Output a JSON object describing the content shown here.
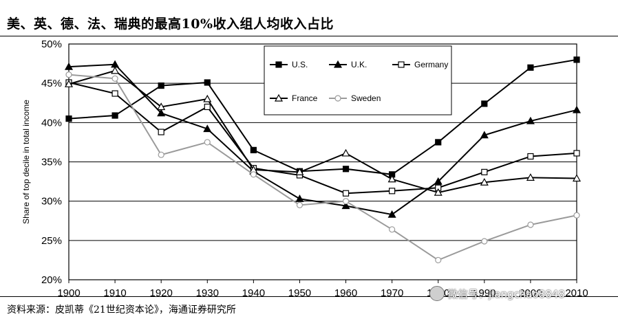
{
  "page": {
    "title": "美、英、德、法、瑞典的最高10%收入组人均收入占比",
    "source": "资料来源：皮凯蒂《21世纪资本论》，海通证券研究所",
    "watermark": "微信号：jiangchao8848"
  },
  "chart_data": {
    "type": "line",
    "ylabel": "Share of top decile in total income",
    "x": [
      1900,
      1910,
      1920,
      1930,
      1940,
      1950,
      1960,
      1970,
      1980,
      1990,
      2000,
      2010
    ],
    "x_tick_labels": [
      "1900",
      "1910",
      "1920",
      "1930",
      "1940",
      "1950",
      "1960",
      "1970",
      "1980",
      "1990",
      "2000",
      "2010"
    ],
    "y_tick_labels": [
      "20%",
      "25%",
      "30%",
      "35%",
      "40%",
      "45%",
      "50%"
    ],
    "ylim": [
      20,
      50
    ],
    "xlim": [
      1900,
      2010
    ],
    "grid": "horizontal",
    "legend_position": "top-right",
    "series": [
      {
        "name": "U.S.",
        "marker": "filled-square",
        "color": "#000000",
        "x": [
          1900,
          1910,
          1920,
          1930,
          1940,
          1950,
          1960,
          1970,
          1980,
          1990,
          2000,
          2010
        ],
        "values": [
          40.5,
          40.9,
          44.7,
          45.1,
          36.5,
          33.8,
          34.1,
          33.4,
          37.5,
          42.4,
          47.0,
          48.0
        ]
      },
      {
        "name": "U.K.",
        "marker": "filled-triangle",
        "color": "#000000",
        "x": [
          1900,
          1910,
          1920,
          1930,
          1940,
          1950,
          1960,
          1970,
          1980,
          1990,
          2000,
          2010
        ],
        "values": [
          47.1,
          47.4,
          41.2,
          39.2,
          33.8,
          30.3,
          29.4,
          28.3,
          32.5,
          38.4,
          40.2,
          41.6
        ]
      },
      {
        "name": "Germany",
        "marker": "hollow-square",
        "color": "#000000",
        "x": [
          1900,
          1910,
          1920,
          1930,
          1940,
          1950,
          1960,
          1970,
          1980,
          1990,
          2000,
          2010
        ],
        "values": [
          45.1,
          43.7,
          38.8,
          42.0,
          34.2,
          33.3,
          31.0,
          31.3,
          31.7,
          33.7,
          35.7,
          36.1
        ]
      },
      {
        "name": "France",
        "marker": "hollow-triangle",
        "color": "#000000",
        "x": [
          1900,
          1910,
          1920,
          1930,
          1940,
          1950,
          1960,
          1970,
          1980,
          1990,
          2000,
          2010
        ],
        "values": [
          44.9,
          46.6,
          42.0,
          43.0,
          34.0,
          33.7,
          36.1,
          32.8,
          31.1,
          32.4,
          33.0,
          32.9
        ]
      },
      {
        "name": "Sweden",
        "marker": "hollow-circle",
        "color": "#9a9a9a",
        "x": [
          1900,
          1910,
          1920,
          1930,
          1940,
          1950,
          1960,
          1970,
          1980,
          1990,
          2000,
          2010
        ],
        "values": [
          46.1,
          45.6,
          35.9,
          37.5,
          33.4,
          29.5,
          30.0,
          26.4,
          22.5,
          24.9,
          27.0,
          28.2
        ]
      }
    ]
  }
}
